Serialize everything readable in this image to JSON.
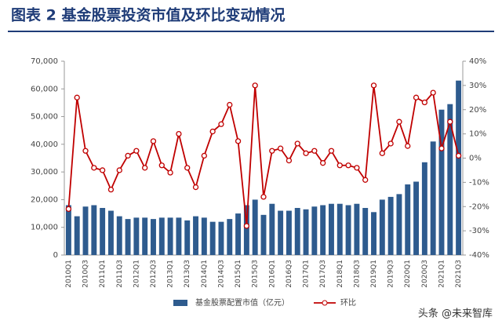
{
  "chart_data": {
    "type": "bar-line",
    "title": "图表 2   基金股票投资市值及环比变动情况",
    "watermark": "头条 @未来智库",
    "categories": [
      "2010Q1",
      null,
      "2010Q3",
      null,
      "2011Q1",
      null,
      "2011Q3",
      null,
      "2012Q1",
      null,
      "2012Q3",
      null,
      "2013Q1",
      null,
      "2013Q3",
      null,
      "2014Q1",
      null,
      "2014Q3",
      null,
      "2015Q1",
      null,
      "2015Q3",
      null,
      "2016Q1",
      null,
      "2016Q3",
      null,
      "2017Q1",
      null,
      "2017Q3",
      null,
      "2018Q1",
      null,
      "2018Q3",
      null,
      "2019Q1",
      null,
      "2019Q3",
      null,
      "2020Q1",
      null,
      "2020Q3",
      null,
      "2021Q1",
      null,
      "2021Q3"
    ],
    "series": [
      {
        "name": "基金股票配置市值（亿元）",
        "color": "#2e5b8e",
        "axis": "y",
        "values": [
          18000,
          14000,
          17500,
          18000,
          17000,
          16000,
          14000,
          13000,
          13500,
          13500,
          13000,
          13500,
          13500,
          13500,
          12500,
          14000,
          13500,
          12000,
          12000,
          13000,
          15000,
          18000,
          20000,
          14500,
          18500,
          16000,
          16000,
          17000,
          16500,
          17500,
          18000,
          18500,
          18500,
          18000,
          18500,
          17000,
          15500,
          20000,
          21000,
          22000,
          25500,
          26500,
          33500,
          41000,
          52500,
          54500,
          63000
        ]
      },
      {
        "name": "环比",
        "color": "#c00000",
        "axis": "y2",
        "values": [
          -21,
          25,
          3,
          -4,
          -5,
          -13,
          -5,
          1,
          3,
          -4,
          7,
          -3,
          -6,
          10,
          -4,
          -12,
          1,
          11,
          14,
          22,
          7,
          -28,
          30,
          -16,
          3,
          4,
          -1,
          6,
          2,
          3,
          -2,
          3,
          -3,
          -3,
          -4,
          -9,
          30,
          2,
          6,
          15,
          5,
          25,
          23,
          27,
          4,
          15,
          1
        ]
      }
    ],
    "ylim": [
      0,
      70000
    ],
    "yticks": [
      0,
      {
        "value": 10000,
        "label": "10,000"
      },
      {
        "value": 20000,
        "label": "20,000"
      },
      {
        "value": 30000,
        "label": "30,000"
      },
      {
        "value": 40000,
        "label": "40,000"
      },
      {
        "value": 50000,
        "label": "50,000"
      },
      {
        "value": 60000,
        "label": "60,000"
      },
      {
        "value": 70000,
        "label": "70,000"
      }
    ],
    "y2lim": [
      -40,
      40
    ],
    "y2ticks": [
      {
        "value": -40,
        "label": "-40%"
      },
      {
        "value": -30,
        "label": "-30%"
      },
      {
        "value": -20,
        "label": "-20%"
      },
      {
        "value": -10,
        "label": "-10%"
      },
      {
        "value": 0,
        "label": "0%"
      },
      {
        "value": 10,
        "label": "10%"
      },
      {
        "value": 20,
        "label": "20%"
      },
      {
        "value": 30,
        "label": "30%"
      },
      {
        "value": 40,
        "label": "40%"
      }
    ],
    "legend": "bottom"
  }
}
